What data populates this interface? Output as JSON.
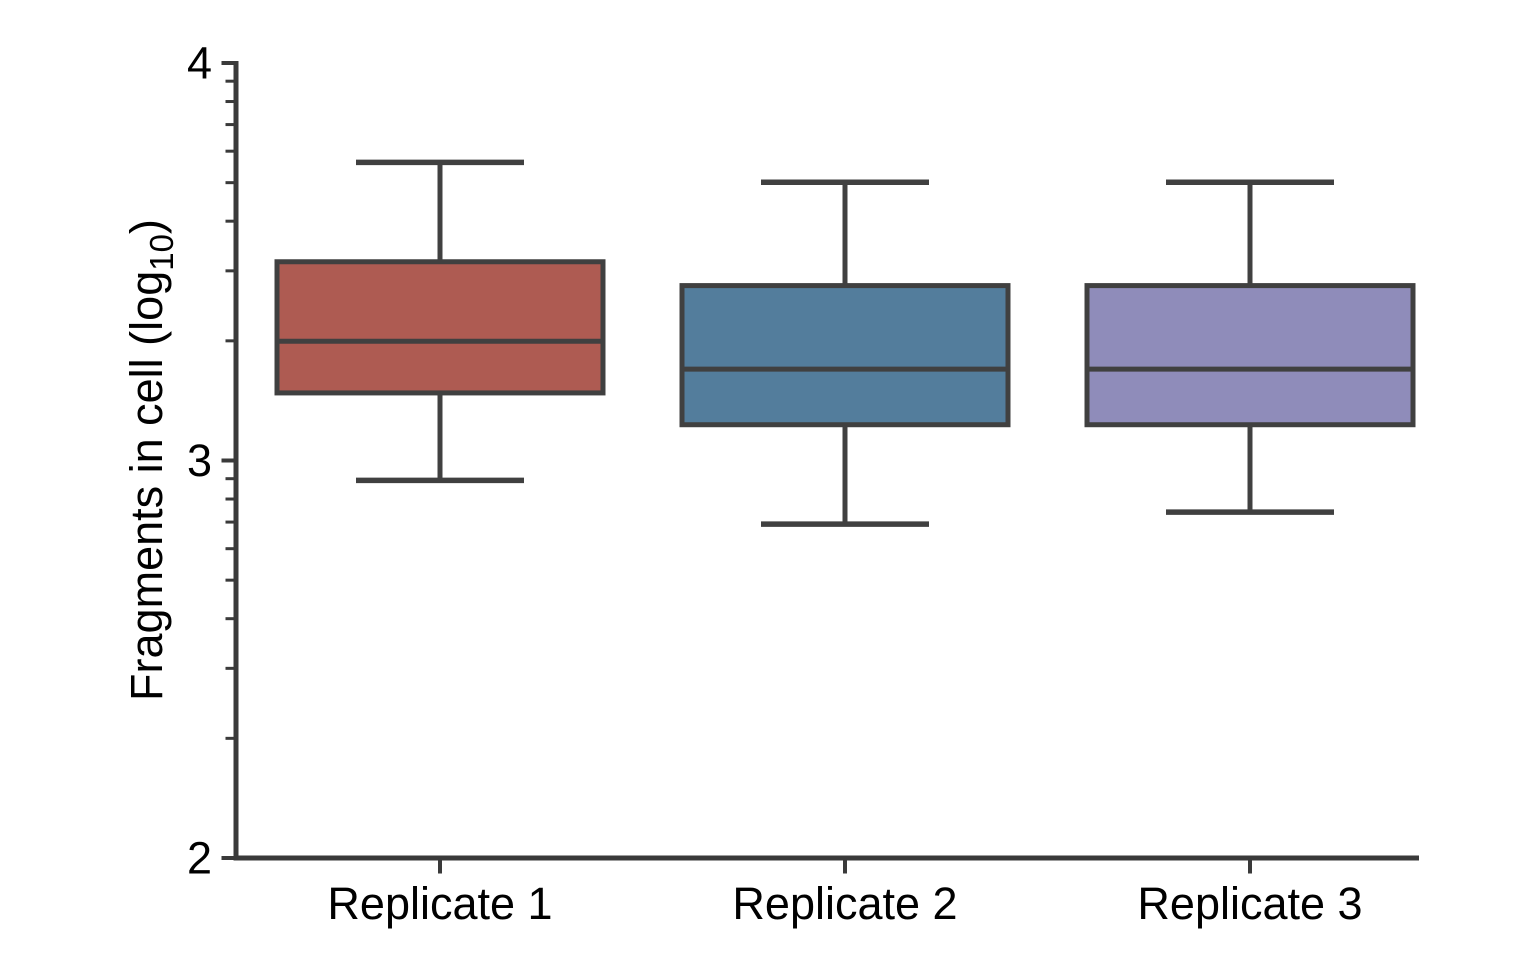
{
  "chart_data": {
    "type": "box",
    "title": "",
    "ylabel_parts": {
      "prefix": "Fragments in cell (log",
      "subscript": "10",
      "suffix": ")"
    },
    "y_axis": {
      "scale": "log10",
      "min": 2,
      "max": 4,
      "major_ticks": [
        {
          "value": 4,
          "label": "4"
        },
        {
          "value": 3,
          "label": "3"
        },
        {
          "value": 2,
          "label": "2"
        }
      ],
      "minor_ticks": "log-decade-2-to-9",
      "grid": false
    },
    "categories": [
      "Replicate 1",
      "Replicate 2",
      "Replicate 3"
    ],
    "series": [
      {
        "name": "Replicate 1",
        "fill": "#ae5b52",
        "whisker_low": 2.95,
        "q1": 3.17,
        "median": 3.3,
        "q3": 3.5,
        "whisker_high": 3.75
      },
      {
        "name": "Replicate 2",
        "fill": "#537d9c",
        "whisker_low": 2.84,
        "q1": 3.09,
        "median": 3.23,
        "q3": 3.44,
        "whisker_high": 3.7
      },
      {
        "name": "Replicate 3",
        "fill": "#8f8cba",
        "whisker_low": 2.87,
        "q1": 3.09,
        "median": 3.23,
        "q3": 3.44,
        "whisker_high": 3.7
      }
    ],
    "style": {
      "edge_color": "#404040",
      "axis_color": "#3a3a3a",
      "text_color": "#000000",
      "background": "#ffffff"
    },
    "legend": null
  }
}
